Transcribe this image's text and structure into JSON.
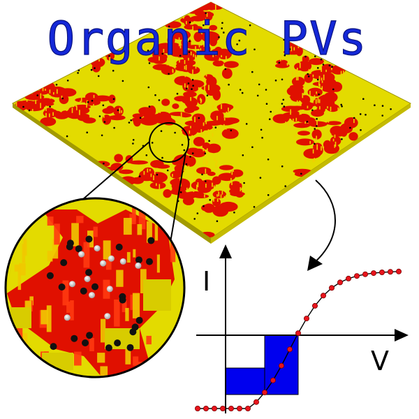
{
  "title": "Organic PVs",
  "iv_graph": {
    "y_axis_label": "I",
    "x_axis_label": "V"
  },
  "colors": {
    "title_fill": "#1428d8",
    "acceptor_phase": "#e8e000",
    "donor_phase": "#e01000",
    "power_box": "#0000ee",
    "curve_points": "#e8141c"
  }
}
